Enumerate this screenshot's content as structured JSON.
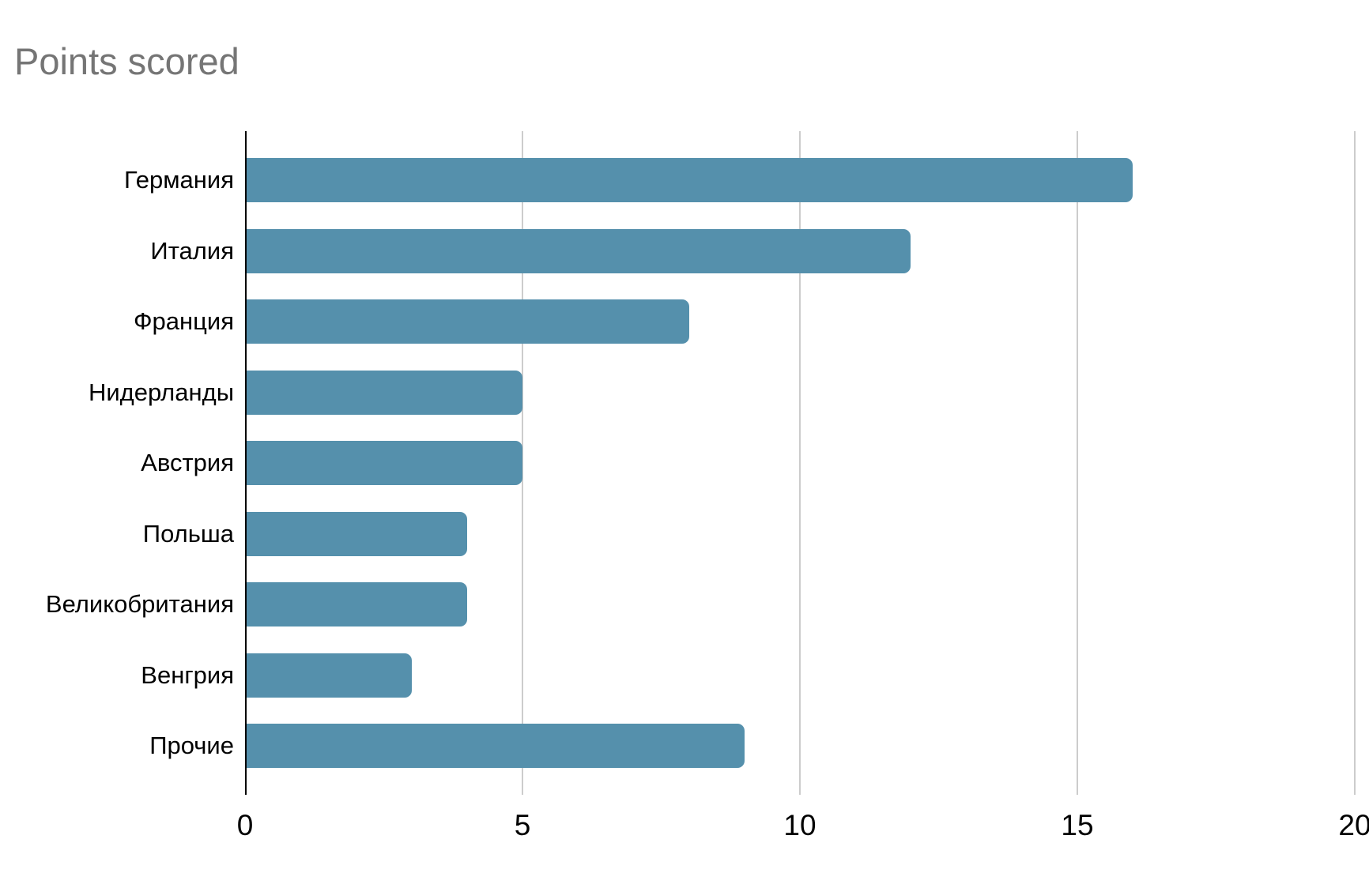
{
  "title": "Points scored",
  "colors": {
    "bar": "#5590ac",
    "title_text": "#757575",
    "axis_line": "#000000",
    "gridline": "#cccccc",
    "tick_text": "#000000",
    "label_text": "#000000",
    "background": "#ffffff"
  },
  "chart_data": {
    "type": "bar",
    "orientation": "horizontal",
    "title": "Points scored",
    "categories": [
      "Германия",
      "Италия",
      "Франция",
      "Нидерланды",
      "Австрия",
      "Польша",
      "Великобритания",
      "Венгрия",
      "Прочие"
    ],
    "values": [
      16,
      12,
      8,
      5,
      5,
      4,
      4,
      3,
      9
    ],
    "xlabel": "",
    "ylabel": "",
    "xlim": [
      0,
      20
    ],
    "x_tick_labels": [
      "0",
      "5",
      "10",
      "15",
      "20"
    ],
    "x_tick_values": [
      0,
      5,
      10,
      15,
      20
    ],
    "grid": true,
    "legend": false
  }
}
